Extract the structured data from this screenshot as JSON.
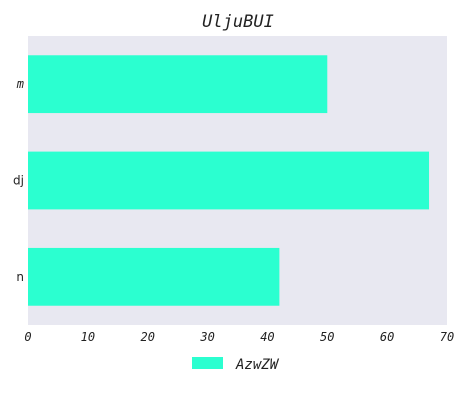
{
  "chart_data": {
    "type": "bar",
    "orientation": "horizontal",
    "title": "UljuBUI",
    "categories": [
      "m",
      "dj",
      "n"
    ],
    "series": [
      {
        "name": "AzwZW",
        "values": [
          50,
          67,
          42
        ]
      }
    ],
    "xlim": [
      0,
      70
    ],
    "x_ticks": [
      "0",
      "10",
      "20",
      "30",
      "40",
      "50",
      "60",
      "70"
    ],
    "xlabel": "",
    "ylabel": "",
    "grid": false,
    "legend_position": "bottom-center",
    "colors": {
      "bar": "#2bffd0",
      "plot_background": "#e8e8f1"
    }
  }
}
